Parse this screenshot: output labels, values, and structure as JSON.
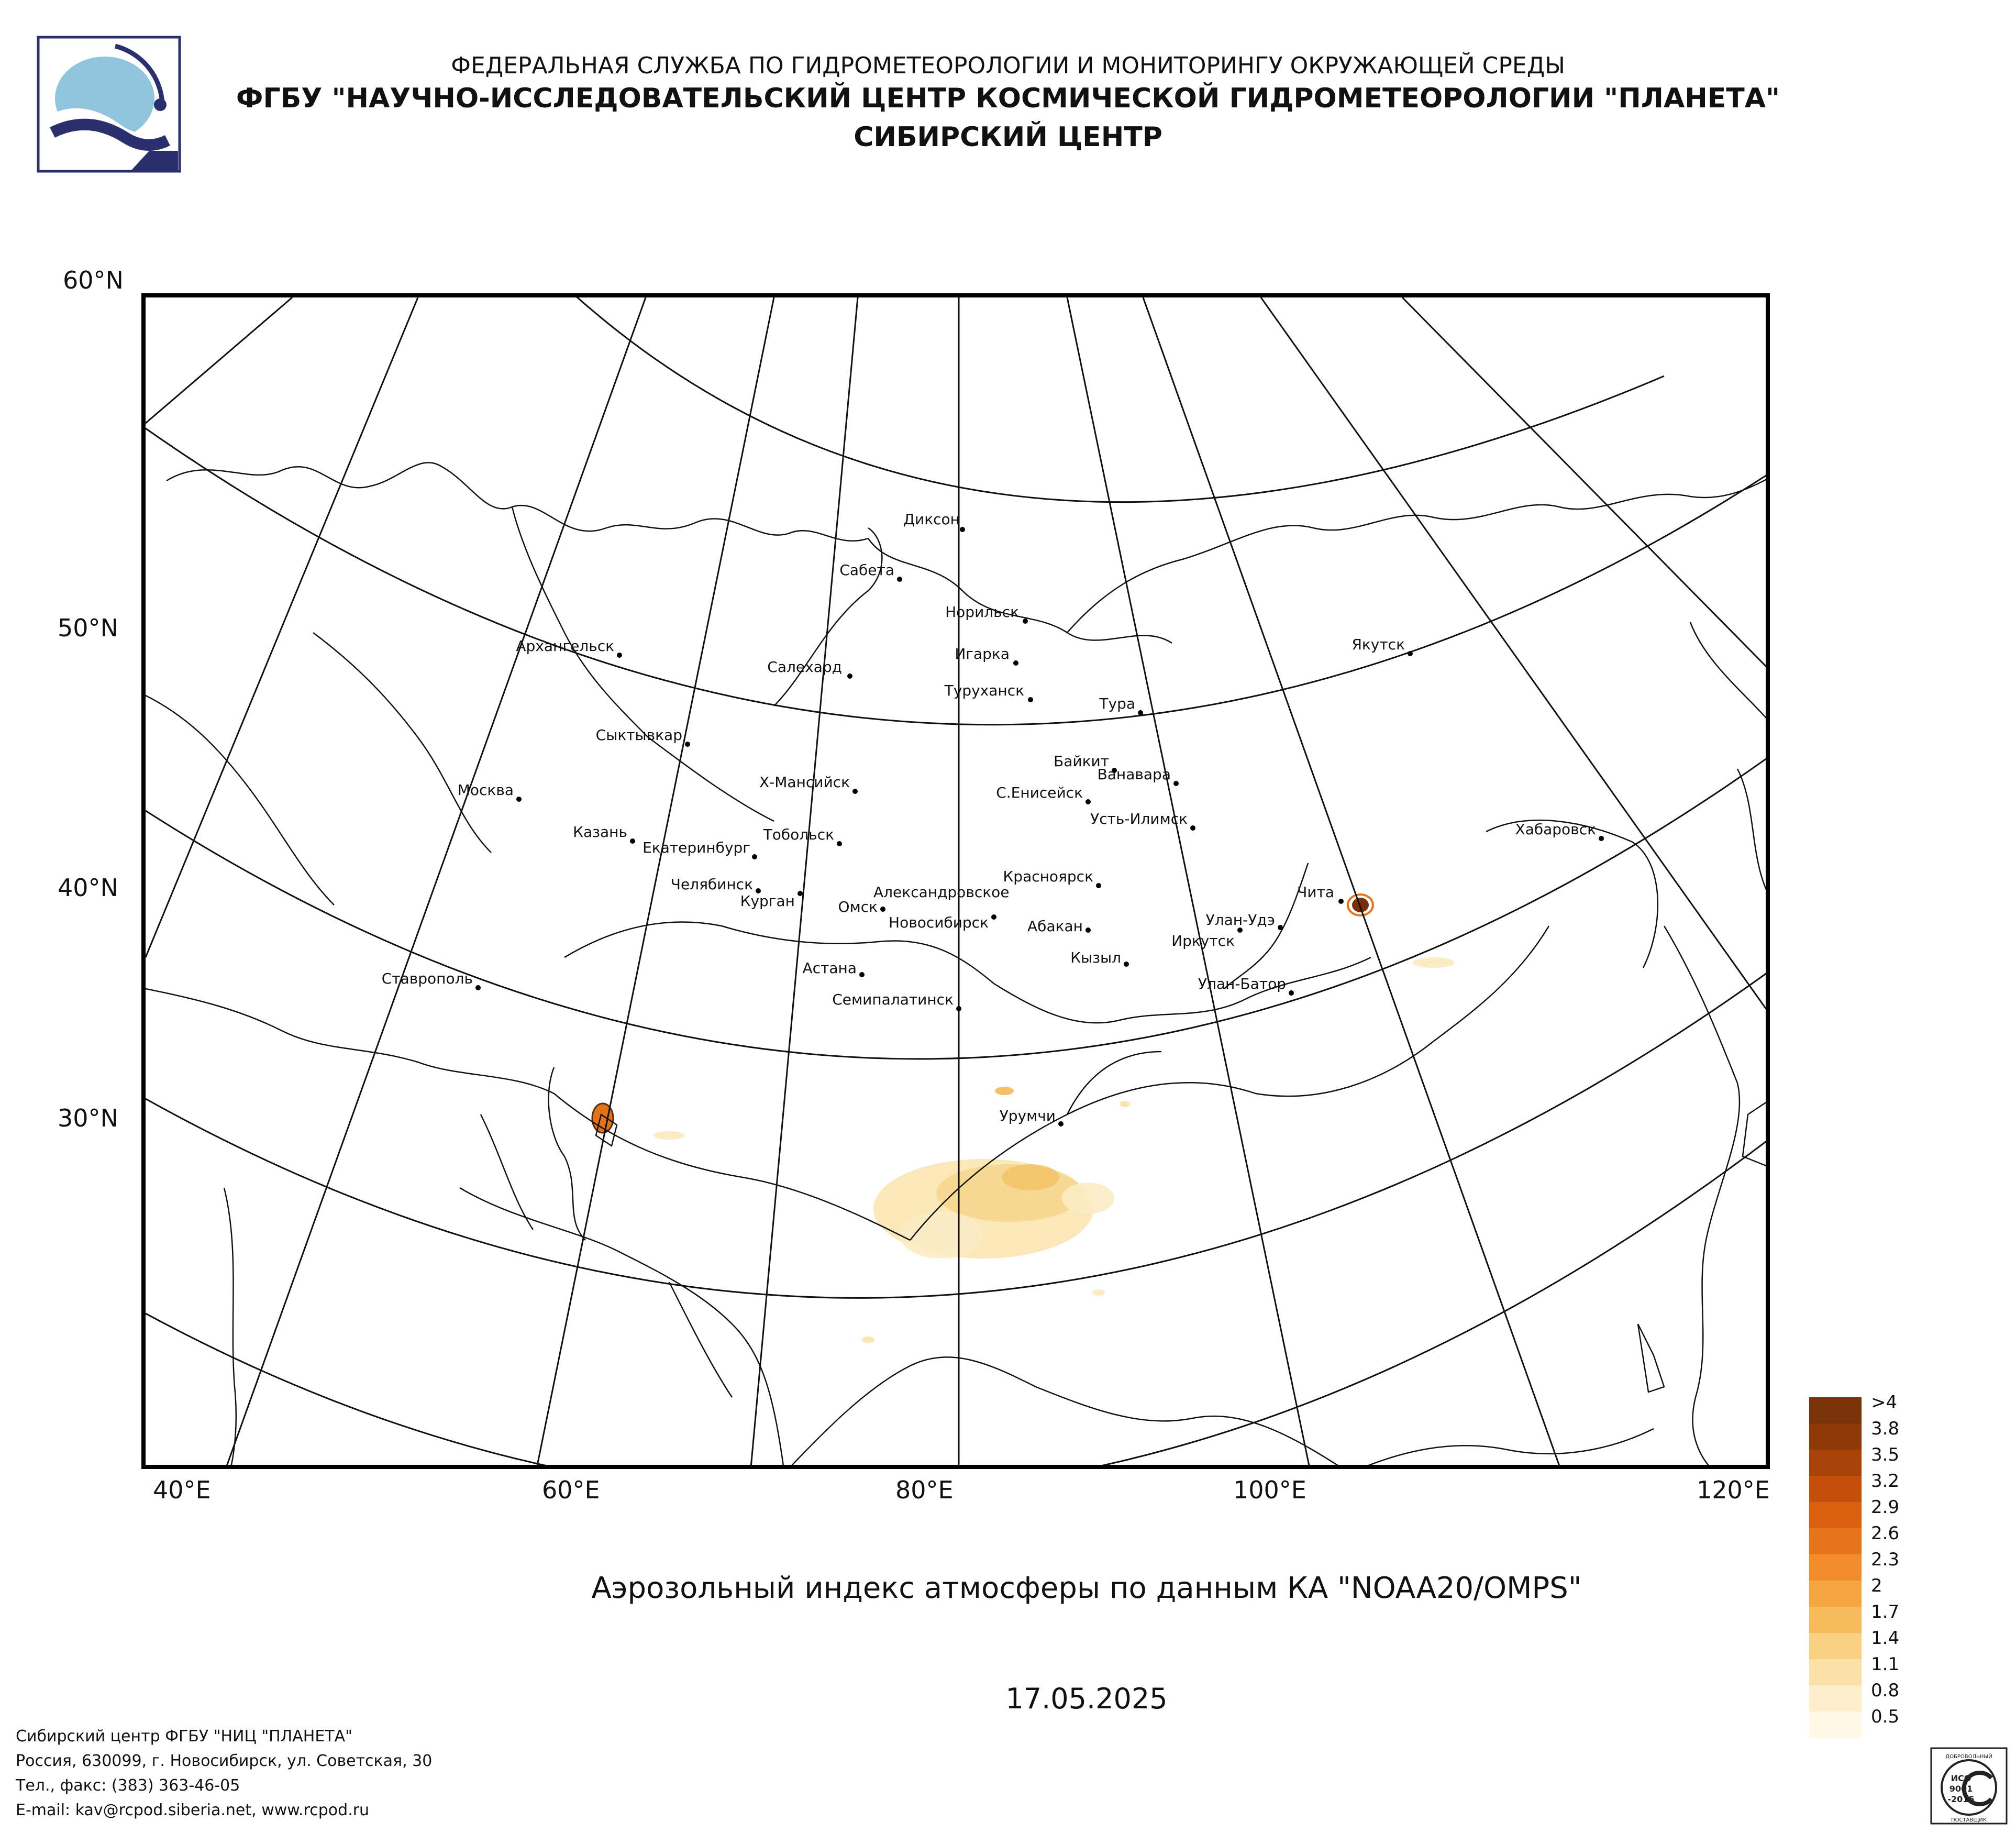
{
  "header": {
    "line1": "ФЕДЕРАЛЬНАЯ СЛУЖБА ПО ГИДРОМЕТЕОРОЛОГИИ И МОНИТОРИНГУ ОКРУЖАЮЩЕЙ СРЕДЫ",
    "line2": "ФГБУ \"НАУЧНО-ИССЛЕДОВАТЕЛЬСКИЙ ЦЕНТР КОСМИЧЕСКОЙ ГИДРОМЕТЕОРОЛОГИИ \"ПЛАНЕТА\"",
    "line3": "СИБИРСКИЙ ЦЕНТР"
  },
  "map": {
    "title": "Аэрозольный индекс атмосферы по данным КА \"NOAA20/OMPS\"",
    "date": "17.05.2025",
    "lat_labels": [
      "60°N",
      "50°N",
      "40°N",
      "30°N"
    ],
    "lon_labels": [
      "40°E",
      "60°E",
      "80°E",
      "100°E",
      "120°E"
    ],
    "cities": [
      "Диксон",
      "Сабета",
      "Норильск",
      "Игарка",
      "Салехард",
      "Туруханск",
      "Тура",
      "Якутск",
      "Архангельск",
      "Сыктывкар",
      "Байкит",
      "Ванавара",
      "Х-Мансийск",
      "С.Енисейск",
      "Москва",
      "Усть-Илимск",
      "Хабаровск",
      "Казань",
      "Тобольск",
      "Екатеринбург",
      "Чита",
      "Красноярск",
      "Челябинск",
      "Курган",
      "Александровское",
      "Омск",
      "Новосибирск",
      "Улан-Удэ",
      "Абакан",
      "Иркутск",
      "Астана",
      "Кызыл",
      "Ставрополь",
      "Семипалатинск",
      "Улан-Батор",
      "Урумчи"
    ],
    "colors": {
      "aerosol_low": "#fbe6b0",
      "aerosol_mid": "#f7c96a",
      "aerosol_high": "#e2731a",
      "aerosol_max": "#7a2e08"
    }
  },
  "legend": {
    "entries": [
      {
        "label": ">4",
        "color": "#7a3208"
      },
      {
        "label": "3.8",
        "color": "#8e3a08"
      },
      {
        "label": "3.5",
        "color": "#a84309"
      },
      {
        "label": "3.2",
        "color": "#c44f0b"
      },
      {
        "label": "2.9",
        "color": "#d9600f"
      },
      {
        "label": "2.6",
        "color": "#e77519"
      },
      {
        "label": "2.3",
        "color": "#f08c2a"
      },
      {
        "label": "2",
        "color": "#f6a63e"
      },
      {
        "label": "1.7",
        "color": "#f8bb5c"
      },
      {
        "label": "1.4",
        "color": "#fad083"
      },
      {
        "label": "1.1",
        "color": "#fbe1a8"
      },
      {
        "label": "0.8",
        "color": "#fdefcb"
      },
      {
        "label": "0.5",
        "color": "#fef8e6"
      }
    ]
  },
  "footer": {
    "line1": "Сибирский центр ФГБУ \"НИЦ \"ПЛАНЕТА\"",
    "line2": "Россия, 630099, г. Новосибирск, ул. Советская, 30",
    "line3": "Тел., факс: (383) 363-46-05",
    "line4": "E-mail: kav@rcpod.siberia.net, www.rcpod.ru"
  },
  "certificate": {
    "top": "ДОБРОВОЛЬНЫЙ",
    "mid1": "ИСО",
    "mid2": "9001",
    "mid3": "-2015",
    "bottom": "ПОСТАВЩИК"
  }
}
